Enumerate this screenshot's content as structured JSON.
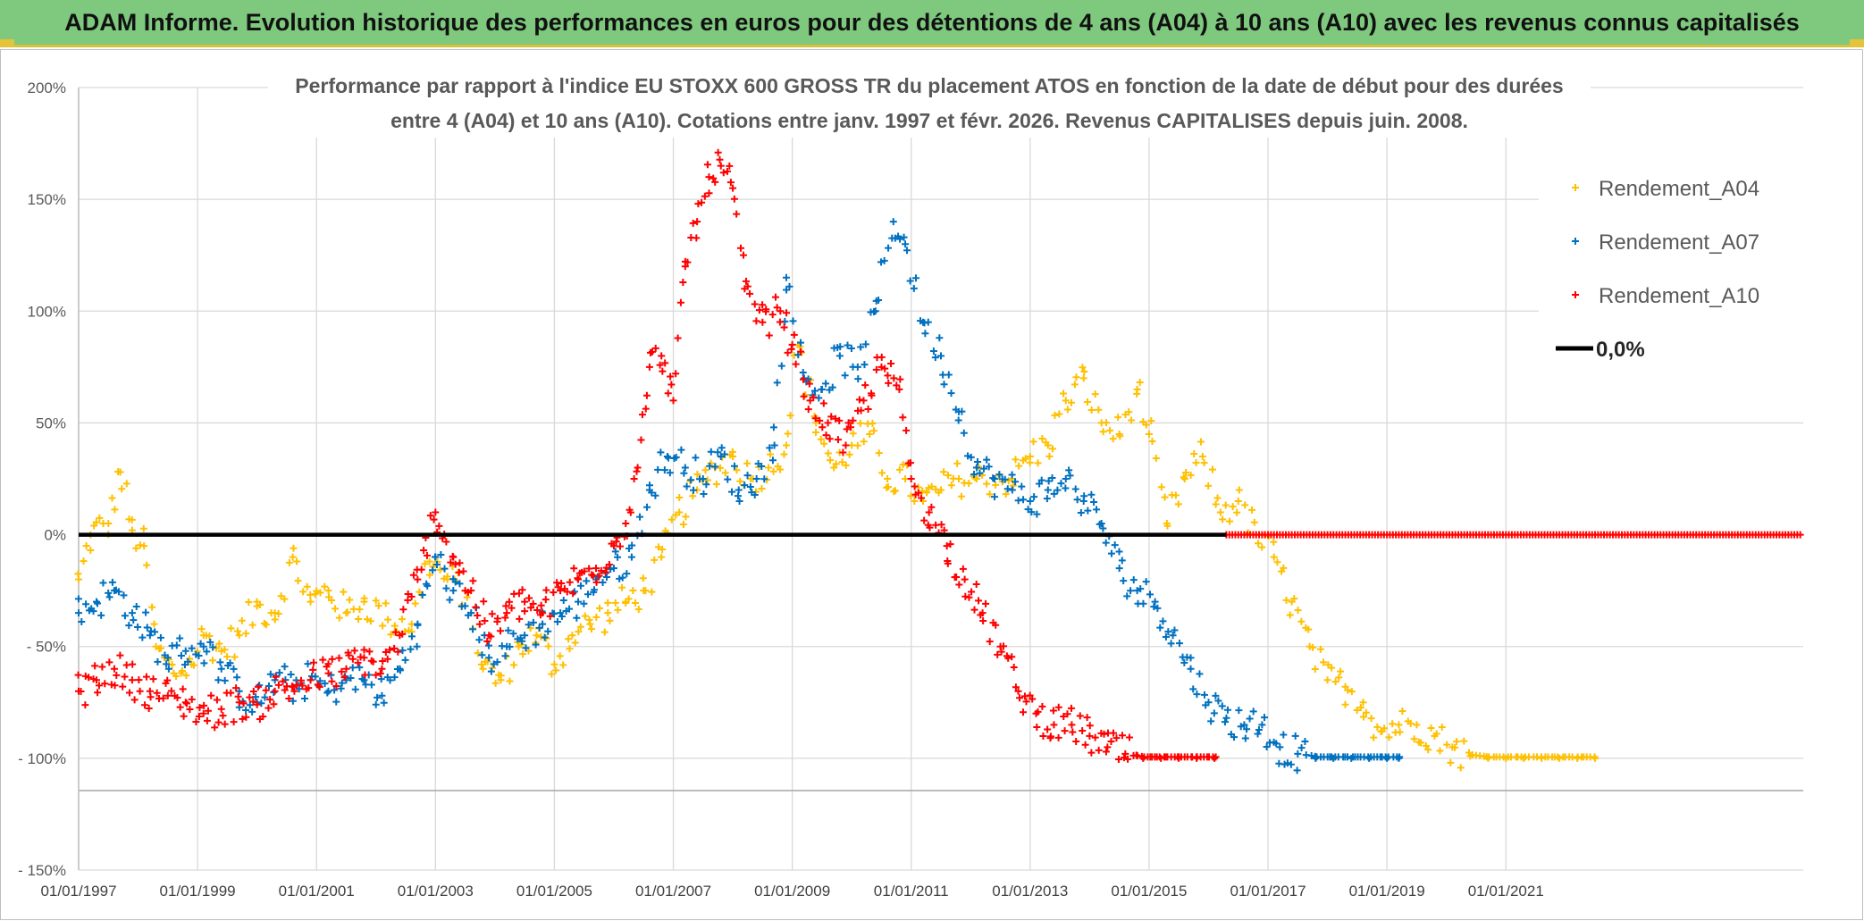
{
  "banner": {
    "title": "ADAM Informe. Evolution historique des performances en euros pour des détentions de 4 ans (A04) à 10 ans (A10) avec les revenus connus capitalisés"
  },
  "chart_data": {
    "type": "scatter",
    "title_line1": "Performance par rapport à l'indice EU STOXX 600 GROSS TR  du placement ATOS en fonction de la date de début pour des durées",
    "title_line2": "entre 4 (A04) et 10 ans (A10). Cotations entre janv. 1997 et févr. 2026. Revenus CAPITALISES depuis juin. 2008.",
    "xlabel": "",
    "ylabel": "",
    "xlim": [
      1997.0,
      2026.0
    ],
    "ylim": [
      -150,
      200
    ],
    "y_ticks": [
      200,
      150,
      100,
      50,
      0,
      -50,
      -100,
      -150
    ],
    "y_tick_labels": [
      "200%",
      "150%",
      "100%",
      "50%",
      "0%",
      "- 50%",
      "- 100%",
      "- 150%"
    ],
    "x_ticks": [
      1997,
      1999,
      2001,
      2003,
      2005,
      2007,
      2009,
      2011,
      2013,
      2015,
      2017,
      2019,
      2021
    ],
    "x_tick_labels": [
      "01/01/1997",
      "01/01/1999",
      "01/01/2001",
      "01/01/2003",
      "01/01/2005",
      "01/01/2007",
      "01/01/2009",
      "01/01/2011",
      "01/01/2013",
      "01/01/2015",
      "01/01/2017",
      "01/01/2019",
      "01/01/2021"
    ],
    "grid": true,
    "legend_position": "top-right",
    "zero_line": {
      "name": "0,0%",
      "value": 0,
      "color": "#000000"
    },
    "series": [
      {
        "name": "Rendement_A04",
        "color": "#ffc000",
        "x": [
          1997.0,
          1997.2,
          1997.5,
          1997.7,
          1997.9,
          1998.1,
          1998.3,
          1998.6,
          1998.9,
          1999.1,
          1999.4,
          1999.7,
          2000.0,
          2000.3,
          2000.6,
          2000.9,
          2001.2,
          2001.5,
          2001.8,
          2002.2,
          2002.6,
          2002.9,
          2003.2,
          2003.5,
          2003.8,
          2004.1,
          2004.4,
          2004.7,
          2005.0,
          2005.3,
          2005.6,
          2005.9,
          2006.2,
          2006.5,
          2006.8,
          2007.1,
          2007.4,
          2007.7,
          2008.0,
          2008.3,
          2008.6,
          2008.9,
          2009.1,
          2009.4,
          2009.7,
          2010.0,
          2010.3,
          2010.6,
          2010.9,
          2011.2,
          2011.5,
          2011.8,
          2012.1,
          2012.4,
          2012.7,
          2013.0,
          2013.3,
          2013.6,
          2013.9,
          2014.2,
          2014.5,
          2014.8,
          2015.0,
          2015.3,
          2015.6,
          2015.9,
          2016.2,
          2016.5,
          2016.8,
          2017.1,
          2017.4,
          2017.7,
          2018.0,
          2018.3,
          2018.6,
          2018.9,
          2019.2,
          2019.5,
          2019.8,
          2020.1,
          2020.4,
          2020.7,
          2021.0,
          2021.3,
          2021.6,
          2021.9,
          2022.2,
          2022.5
        ],
        "values": [
          -20,
          0,
          5,
          28,
          2,
          -5,
          -50,
          -62,
          -58,
          -45,
          -52,
          -45,
          -32,
          -35,
          -10,
          -30,
          -25,
          -35,
          -30,
          -38,
          -40,
          -12,
          -20,
          -25,
          -60,
          -65,
          -50,
          -45,
          -58,
          -45,
          -40,
          -35,
          -30,
          -25,
          -10,
          10,
          20,
          30,
          35,
          25,
          30,
          40,
          85,
          50,
          30,
          40,
          45,
          25,
          25,
          15,
          20,
          25,
          25,
          25,
          25,
          35,
          40,
          60,
          70,
          50,
          45,
          65,
          45,
          5,
          25,
          35,
          10,
          15,
          0,
          -10,
          -30,
          -50,
          -65,
          -68,
          -75,
          -88,
          -85,
          -85,
          -90,
          -95,
          -99,
          -100,
          -100,
          -100,
          -100,
          -100,
          -100,
          -100
        ]
      },
      {
        "name": "Rendement_A07",
        "color": "#0070c0",
        "x": [
          1997.0,
          1997.3,
          1997.6,
          1997.9,
          1998.2,
          1998.5,
          1998.8,
          1999.1,
          1999.4,
          1999.7,
          2000.0,
          2000.3,
          2000.6,
          2000.9,
          2001.2,
          2001.5,
          2001.8,
          2002.1,
          2002.4,
          2002.7,
          2003.0,
          2003.3,
          2003.6,
          2003.9,
          2004.2,
          2004.5,
          2004.8,
          2005.1,
          2005.4,
          2005.7,
          2006.0,
          2006.3,
          2006.6,
          2006.9,
          2007.2,
          2007.5,
          2007.8,
          2008.1,
          2008.4,
          2008.7,
          2008.9,
          2009.2,
          2009.5,
          2009.8,
          2010.1,
          2010.4,
          2010.7,
          2010.9,
          2011.2,
          2011.5,
          2011.8,
          2012.1,
          2012.4,
          2012.7,
          2013.0,
          2013.3,
          2013.6,
          2013.9,
          2014.2,
          2014.5,
          2014.8,
          2015.1,
          2015.4,
          2015.7,
          2016.0,
          2016.3,
          2016.6,
          2016.9,
          2017.2,
          2017.5,
          2017.8,
          2018.1,
          2018.4,
          2018.7,
          2019.0,
          2019.2
        ],
        "values": [
          -35,
          -30,
          -25,
          -35,
          -45,
          -55,
          -52,
          -50,
          -60,
          -70,
          -75,
          -65,
          -68,
          -65,
          -70,
          -65,
          -65,
          -72,
          -60,
          -40,
          -10,
          -25,
          -35,
          -55,
          -50,
          -45,
          -40,
          -35,
          -30,
          -20,
          -15,
          -10,
          20,
          35,
          30,
          25,
          35,
          20,
          25,
          40,
          115,
          70,
          65,
          80,
          75,
          100,
          140,
          130,
          95,
          80,
          55,
          30,
          25,
          20,
          15,
          20,
          25,
          15,
          5,
          -15,
          -25,
          -30,
          -45,
          -60,
          -75,
          -82,
          -85,
          -85,
          -95,
          -98,
          -100,
          -100,
          -100,
          -100,
          -100,
          -100
        ]
      },
      {
        "name": "Rendement_A10",
        "color": "#ff0000",
        "x": [
          1997.0,
          1997.3,
          1997.6,
          1997.9,
          1998.2,
          1998.5,
          1998.8,
          1999.1,
          1999.4,
          1999.7,
          2000.0,
          2000.3,
          2000.6,
          2000.9,
          2001.2,
          2001.5,
          2001.8,
          2002.1,
          2002.4,
          2002.7,
          2003.0,
          2003.3,
          2003.6,
          2003.9,
          2004.2,
          2004.5,
          2004.8,
          2005.1,
          2005.4,
          2005.7,
          2006.0,
          2006.2,
          2006.4,
          2006.6,
          2006.8,
          2007.0,
          2007.2,
          2007.4,
          2007.6,
          2007.8,
          2008.0,
          2008.2,
          2008.5,
          2008.8,
          2009.0,
          2009.3,
          2009.6,
          2009.9,
          2010.2,
          2010.5,
          2010.8,
          2011.0,
          2011.3,
          2011.6,
          2011.9,
          2012.2,
          2012.5,
          2012.8,
          2013.1,
          2013.4,
          2013.7,
          2014.0,
          2014.3,
          2014.6,
          2014.9,
          2015.2,
          2015.5,
          2015.8,
          2016.1
        ],
        "values": [
          -70,
          -65,
          -60,
          -65,
          -70,
          -72,
          -75,
          -80,
          -78,
          -75,
          -76,
          -70,
          -68,
          -65,
          -62,
          -60,
          -55,
          -60,
          -45,
          -20,
          10,
          -10,
          -25,
          -45,
          -35,
          -30,
          -35,
          -25,
          -20,
          -15,
          -5,
          5,
          30,
          75,
          80,
          60,
          120,
          140,
          160,
          165,
          155,
          110,
          95,
          100,
          85,
          60,
          50,
          40,
          60,
          75,
          65,
          25,
          10,
          -5,
          -20,
          -35,
          -50,
          -70,
          -80,
          -85,
          -85,
          -90,
          -95,
          -98,
          -100,
          -100,
          -100,
          -100,
          -100
        ]
      }
    ]
  }
}
